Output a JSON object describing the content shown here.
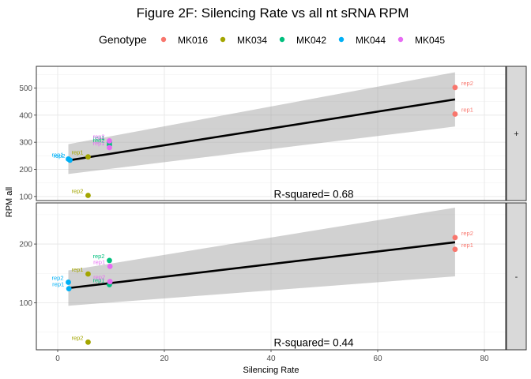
{
  "chart_data": {
    "type": "scatter",
    "title": "Figure 2F: Silencing Rate vs all nt sRNA RPM",
    "xlabel": "Silencing Rate",
    "ylabel": "RPM all",
    "legend": {
      "title": "Genotype",
      "placement": "top",
      "entries": [
        {
          "name": "MK016",
          "color": "#F8766D"
        },
        {
          "name": "MK034",
          "color": "#A3A500"
        },
        {
          "name": "MK042",
          "color": "#00BF7D"
        },
        {
          "name": "MK044",
          "color": "#00B0F6"
        },
        {
          "name": "MK045",
          "color": "#E76BF3"
        }
      ]
    },
    "xlim": [
      -4,
      84
    ],
    "xticks": [
      0,
      20,
      40,
      60,
      80
    ],
    "grid": true,
    "panels": [
      {
        "strip": "+",
        "ylim": [
          85,
          580
        ],
        "yticks": [
          100,
          200,
          300,
          400,
          500
        ],
        "annotation": "R-squared= 0.68",
        "annotation_pos": [
          48,
          95
        ],
        "fit": {
          "x": [
            2,
            74.5
          ],
          "y": [
            233,
            458
          ]
        },
        "band": {
          "x": [
            2,
            74.5
          ],
          "lower": [
            183,
            358
          ],
          "upper": [
            293,
            558
          ]
        },
        "points": [
          {
            "genotype": "MK016",
            "label": "rep2",
            "x": 74.5,
            "y": 502
          },
          {
            "genotype": "MK016",
            "label": "rep1",
            "x": 74.5,
            "y": 404
          },
          {
            "genotype": "MK034",
            "label": "rep1",
            "x": 5.7,
            "y": 246
          },
          {
            "genotype": "MK034",
            "label": "rep2",
            "x": 5.7,
            "y": 104
          },
          {
            "genotype": "MK042",
            "label": "rep1",
            "x": 9.7,
            "y": 300
          },
          {
            "genotype": "MK042",
            "label": "rep2",
            "x": 9.7,
            "y": 290
          },
          {
            "genotype": "MK044",
            "label": "rep1",
            "x": 2.0,
            "y": 238
          },
          {
            "genotype": "MK044",
            "label": "rep2",
            "x": 2.3,
            "y": 234
          },
          {
            "genotype": "MK045",
            "label": "rep2",
            "x": 9.7,
            "y": 305
          },
          {
            "genotype": "MK045",
            "label": "rep1",
            "x": 9.7,
            "y": 280
          }
        ]
      },
      {
        "strip": "-",
        "ylim": [
          20,
          270
        ],
        "yticks": [
          100,
          200
        ],
        "annotation": "R-squared= 0.44",
        "annotation_pos": [
          48,
          26
        ],
        "fit": {
          "x": [
            2,
            74.5
          ],
          "y": [
            125,
            203
          ]
        },
        "band": {
          "x": [
            2,
            74.5
          ],
          "lower": [
            95,
            145
          ],
          "upper": [
            155,
            262
          ]
        },
        "points": [
          {
            "genotype": "MK016",
            "label": "rep2",
            "x": 74.5,
            "y": 211
          },
          {
            "genotype": "MK016",
            "label": "rep1",
            "x": 74.5,
            "y": 191
          },
          {
            "genotype": "MK034",
            "label": "rep1",
            "x": 5.7,
            "y": 149
          },
          {
            "genotype": "MK034",
            "label": "rep2",
            "x": 5.7,
            "y": 33
          },
          {
            "genotype": "MK042",
            "label": "rep2",
            "x": 9.7,
            "y": 172
          },
          {
            "genotype": "MK042",
            "label": "rep1",
            "x": 9.7,
            "y": 131
          },
          {
            "genotype": "MK044",
            "label": "rep2",
            "x": 2.0,
            "y": 135
          },
          {
            "genotype": "MK044",
            "label": "rep1",
            "x": 2.1,
            "y": 124
          },
          {
            "genotype": "MK045",
            "label": "rep1",
            "x": 9.8,
            "y": 162
          },
          {
            "genotype": "MK045",
            "label": "rep2",
            "x": 9.8,
            "y": 136
          }
        ]
      }
    ]
  }
}
